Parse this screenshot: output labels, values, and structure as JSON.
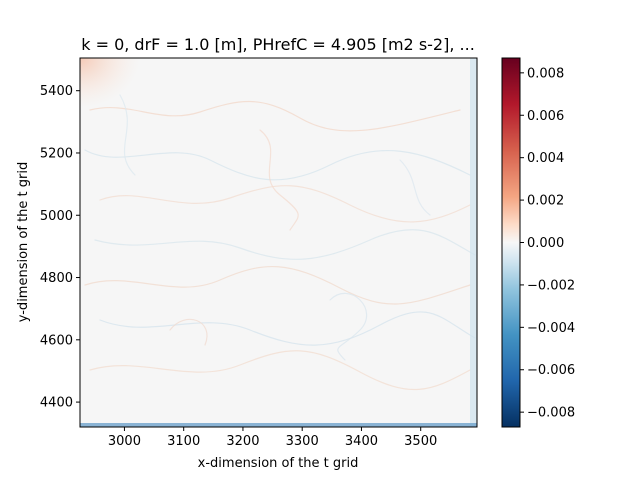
{
  "chart_data": {
    "type": "heatmap",
    "title": "k = 0, drF = 1.0 [m], PHrefC = 4.905 [m2 s-2], ...",
    "xlabel": "x-dimension of the t grid",
    "ylabel": "y-dimension of the t grid",
    "xlim": [
      2925,
      3595
    ],
    "ylim": [
      4320,
      5505
    ],
    "xticks": [
      3000,
      3100,
      3200,
      3300,
      3400,
      3500
    ],
    "yticks": [
      4400,
      4600,
      4800,
      5000,
      5200,
      5400
    ],
    "colorbar": {
      "colormap": "RdBu_r",
      "vmin": -0.0087,
      "vmax": 0.0087,
      "ticks": [
        0.008,
        0.006,
        0.004,
        0.002,
        0.0,
        -0.002,
        -0.004,
        -0.006,
        -0.008
      ],
      "tick_labels": [
        "0.008",
        "0.006",
        "0.004",
        "0.002",
        "0.000",
        "−0.002",
        "−0.004",
        "−0.006",
        "−0.008"
      ]
    },
    "field_description_values": "mostly near zero with faint swirling filaments; stronger positive values in top-left corner and negative values along right and bottom edges",
    "colors": {
      "max": "#67001f",
      "mid": "#f7f7f7",
      "min": "#053061"
    }
  }
}
